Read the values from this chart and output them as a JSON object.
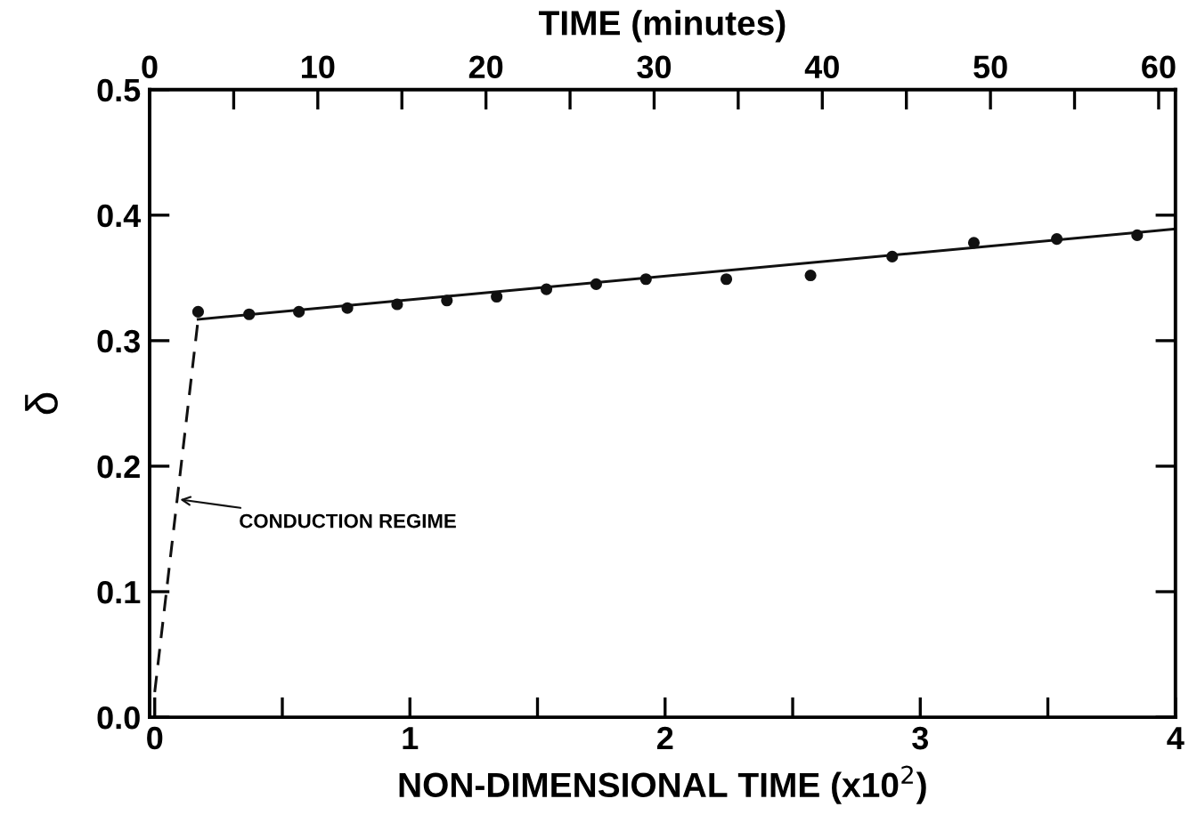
{
  "chart_data": {
    "type": "scatter",
    "xlabel": "NON-DIMENSIONAL TIME (x10$^{2}$)",
    "x2label": "TIME (minutes)",
    "ylabel": "δ",
    "xlim": [
      -0.02,
      4
    ],
    "xticks": [
      0,
      {
        "value": 0.5,
        "label": null
      },
      1,
      {
        "value": 1.5,
        "label": null
      },
      2,
      {
        "value": 2.5,
        "label": null
      },
      3,
      {
        "value": 3.5,
        "label": null
      },
      4
    ],
    "x2lim": [
      0,
      61
    ],
    "x2ticks": [
      0,
      {
        "value": 5,
        "label": null
      },
      10,
      {
        "value": 15,
        "label": null
      },
      20,
      {
        "value": 25,
        "label": null
      },
      30,
      {
        "value": 35,
        "label": null
      },
      40,
      {
        "value": 45,
        "label": null
      },
      50,
      {
        "value": 55,
        "label": null
      },
      60
    ],
    "ylim": [
      0,
      0.5
    ],
    "yticks": [
      {
        "value": 0,
        "label": "0.0"
      },
      0.1,
      0.2,
      0.3,
      0.4,
      0.5
    ],
    "grid": false,
    "legend": false,
    "series": [
      {
        "color": "#111111",
        "marker": "circle",
        "x": [
          0.17,
          0.37,
          0.565,
          0.755,
          0.95,
          1.145,
          1.34,
          1.535,
          1.73,
          1.925,
          2.24,
          2.57,
          2.89,
          3.21,
          3.535,
          3.85
        ],
        "values": [
          0.323,
          0.321,
          0.323,
          0.326,
          0.329,
          0.332,
          0.335,
          0.341,
          0.345,
          0.349,
          0.349,
          0.352,
          0.367,
          0.378,
          0.381,
          0.384
        ]
      },
      {
        "type": "line",
        "color": "#111111",
        "line_style": "solid",
        "marker": "none",
        "x": [
          0.17,
          4.0
        ],
        "values": [
          0.317,
          0.389
        ]
      },
      {
        "type": "line",
        "color": "#111111",
        "line_style": "dashed",
        "marker": "none",
        "x": [
          0.0,
          0.17
        ],
        "values": [
          0.02,
          0.317
        ]
      }
    ],
    "annotations": [
      {
        "text": "CONDUCTION REGIME",
        "x": 0.08,
        "y": 0.174
      }
    ]
  }
}
